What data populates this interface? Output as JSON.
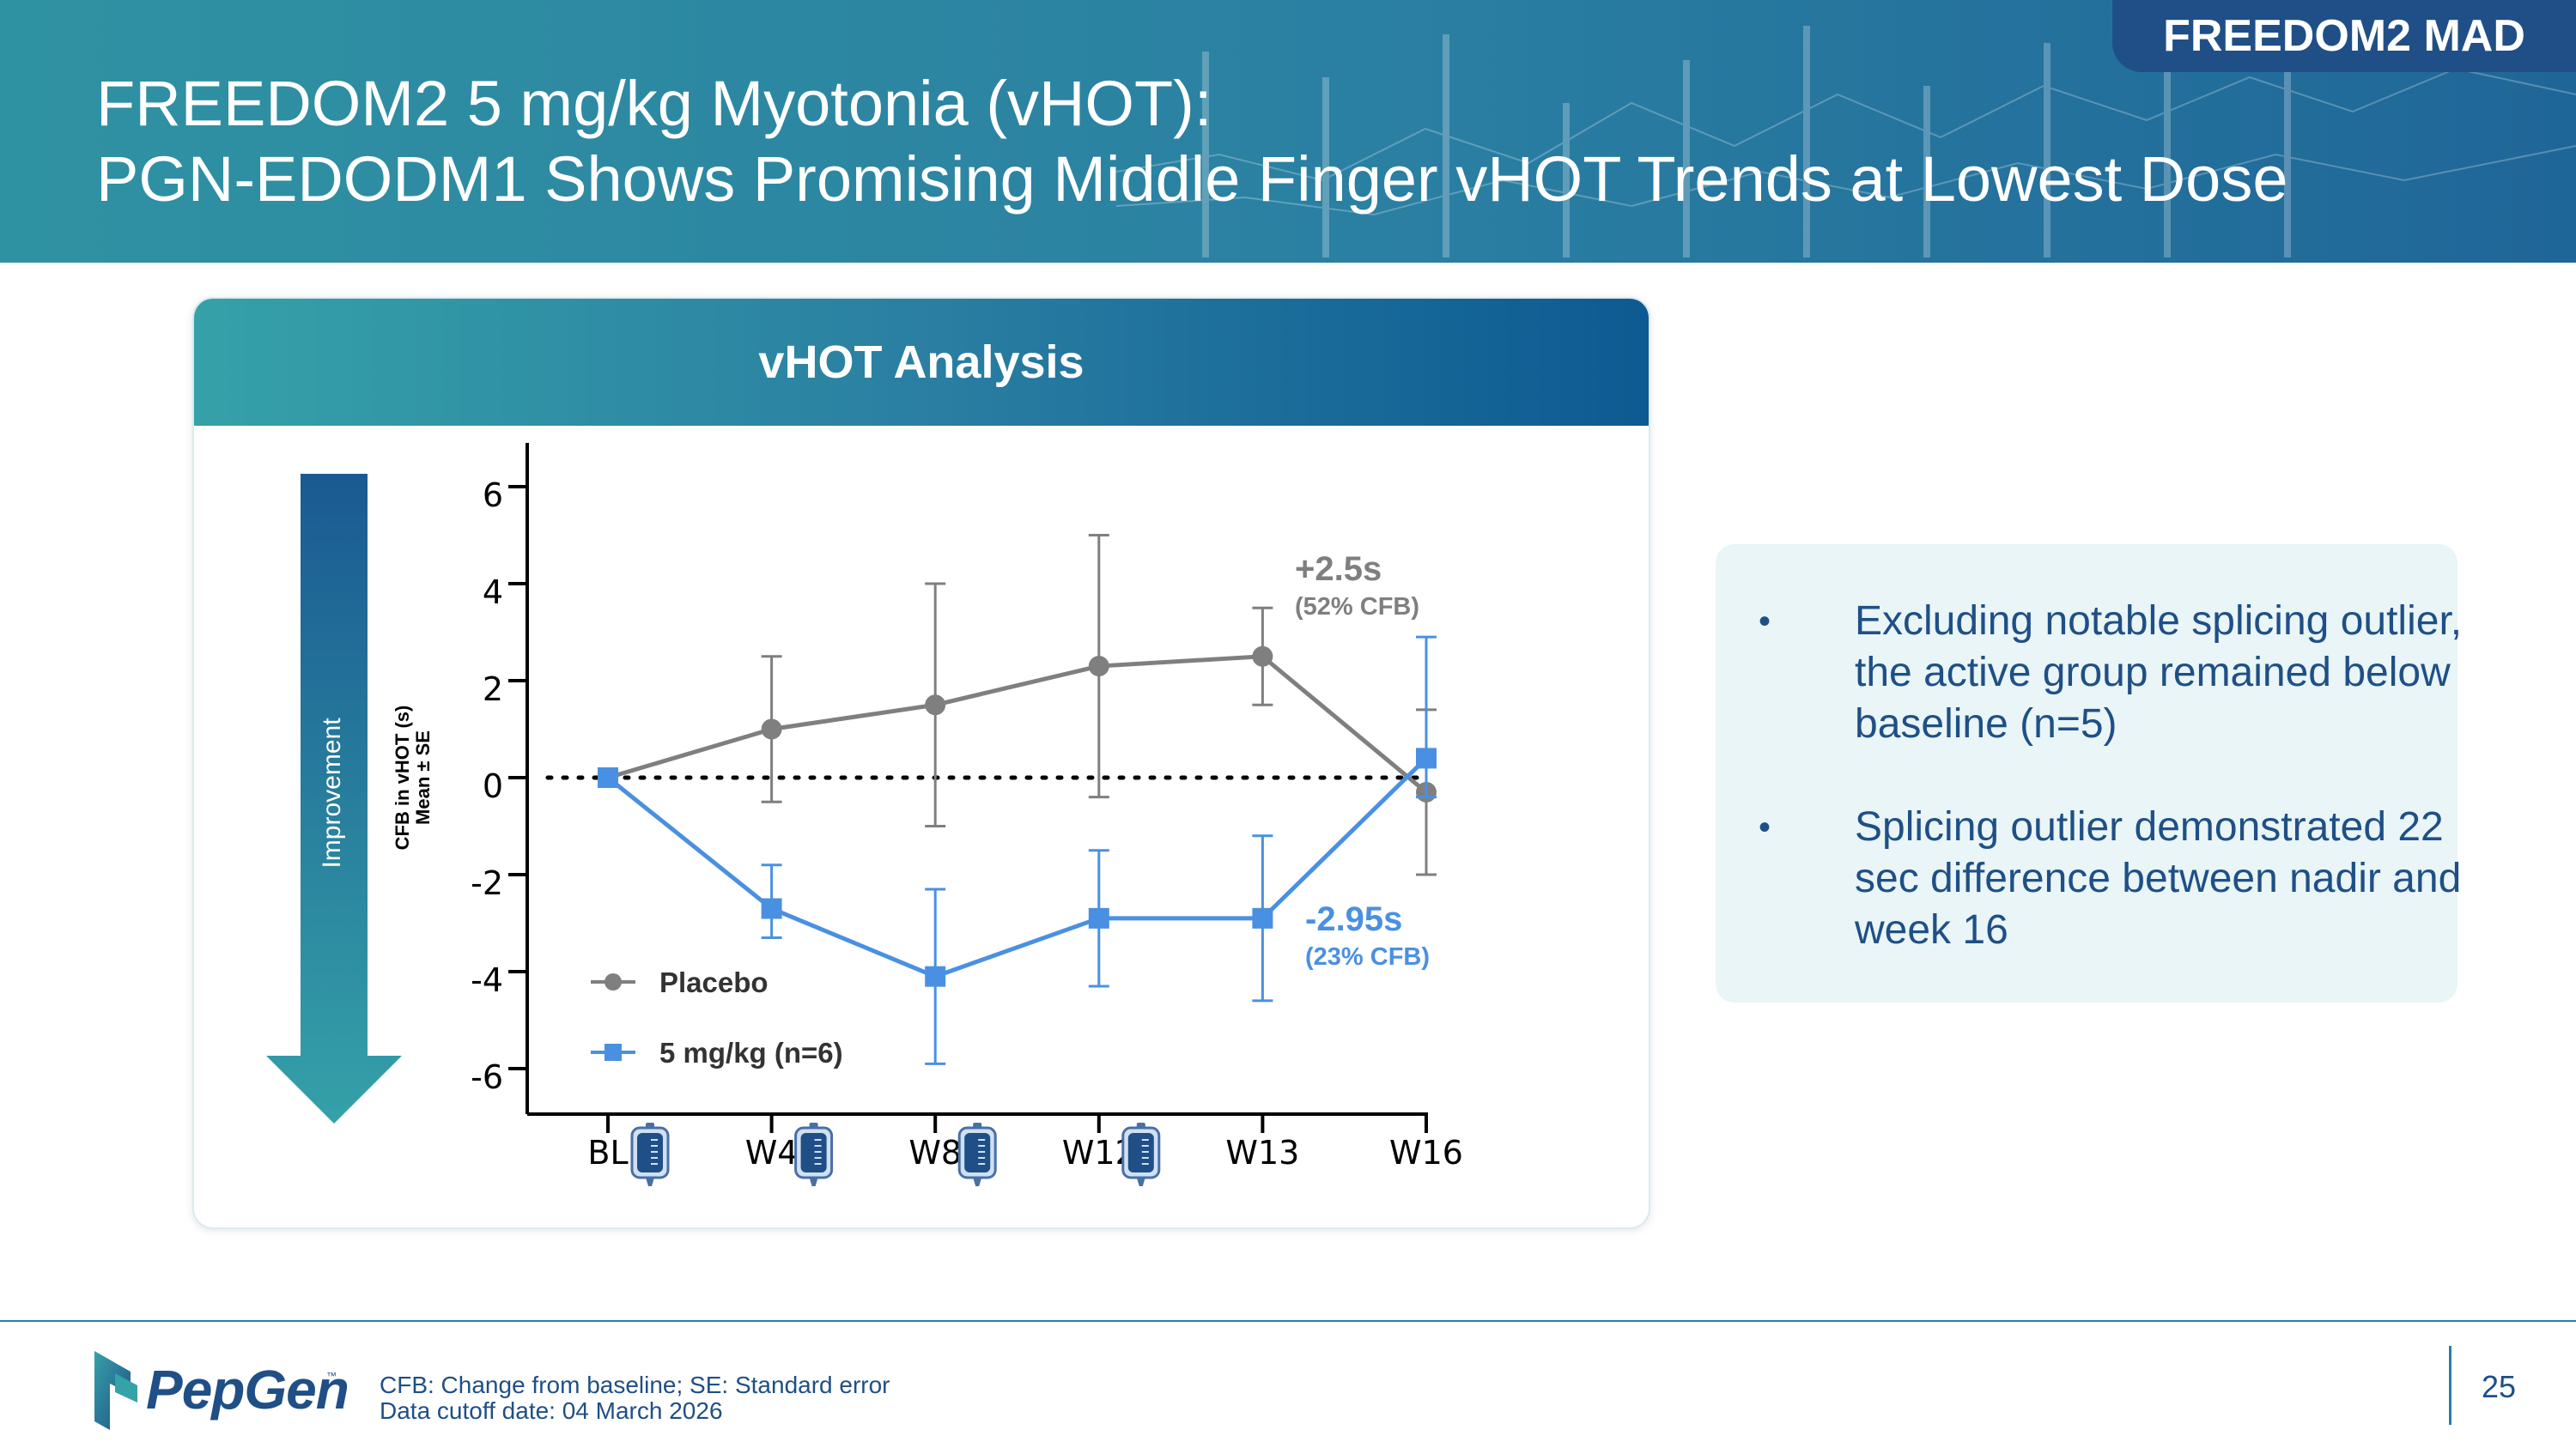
{
  "badge": "FREEDOM2 MAD",
  "title": {
    "line1": "FREEDOM2 5 mg/kg Myotonia (vHOT):",
    "line2": "PGN-EDODM1 Shows Promising Middle Finger vHOT Trends at Lowest Dose"
  },
  "card": {
    "header": "vHOT Analysis"
  },
  "improvement_arrow": {
    "label": "Improvement"
  },
  "chart_data": {
    "type": "line",
    "categories": [
      "BL",
      "W4",
      "W8",
      "W12",
      "W13",
      "W16"
    ],
    "ylabel": "CFB in vHOT (s)",
    "ylabel_sub": "Mean ± SE",
    "ylim": [
      -7,
      7
    ],
    "yticks": [
      6,
      4,
      2,
      0,
      -2,
      -4,
      -6
    ],
    "reference_line": 0,
    "series": [
      {
        "name": "Placebo",
        "color": "#7f7f7f",
        "marker": "circle",
        "values": [
          0,
          1.0,
          1.5,
          2.3,
          2.5,
          -0.3
        ],
        "se_upper": [
          0,
          2.5,
          4.0,
          5.0,
          3.5,
          1.4
        ],
        "se_lower": [
          0,
          -0.5,
          -1.0,
          -0.4,
          1.5,
          -2.0
        ]
      },
      {
        "name": "5 mg/kg (n=6)",
        "color": "#4a90e2",
        "marker": "square",
        "values": [
          0,
          -2.7,
          -4.1,
          -2.9,
          -2.9,
          0.4
        ],
        "se_upper": [
          0,
          -1.8,
          -2.3,
          -1.5,
          -1.2,
          2.9
        ],
        "se_lower": [
          0,
          -3.3,
          -5.9,
          -4.3,
          -4.6,
          -0.4
        ]
      }
    ],
    "annotations": [
      {
        "text": "+2.5s",
        "sub": "(52% CFB)",
        "color": "#7f7f7f"
      },
      {
        "text": "-2.95s",
        "sub": "(23% CFB)",
        "color": "#4a90e2"
      }
    ],
    "dosing_icon_after": [
      "BL",
      "W4",
      "W8",
      "W12"
    ],
    "legend_position": "bottom-left",
    "grid": false
  },
  "bullets": [
    "Excluding notable splicing outlier, the active group remained below baseline (n=5)",
    "Splicing outlier demonstrated 22 sec difference between nadir and week 16"
  ],
  "bullet_glyph": "•",
  "footer": {
    "logo": "PepGen",
    "trademark": "™",
    "note1": "CFB: Change from baseline; SE: Standard error",
    "note2": "Data cutoff date: 04 March 2026",
    "page": "25"
  },
  "icons": [
    "iv-bag-icon",
    "down-arrow-icon",
    "pepgen-logo-icon"
  ]
}
